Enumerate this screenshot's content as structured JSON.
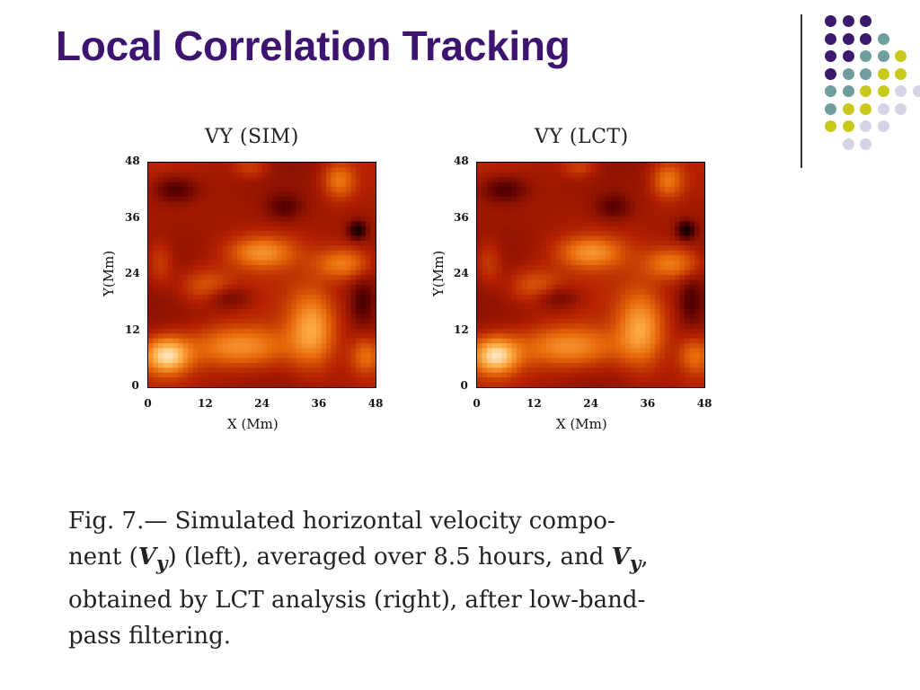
{
  "slide": {
    "title": "Local Correlation Tracking"
  },
  "decoration": {
    "dot_colors": {
      "purple": "#3b1a6e",
      "teal": "#6e9e9e",
      "yellow": "#c9c91c",
      "lavender": "#d4d4e6"
    },
    "dot_rows": [
      [
        "purple",
        "purple",
        "purple"
      ],
      [
        "purple",
        "purple",
        "purple",
        "teal"
      ],
      [
        "purple",
        "purple",
        "teal",
        "teal",
        "yellow"
      ],
      [
        "purple",
        "teal",
        "teal",
        "yellow",
        "yellow"
      ],
      [
        "teal",
        "teal",
        "yellow",
        "yellow",
        "lavender",
        "lavender"
      ],
      [
        "teal",
        "yellow",
        "yellow",
        "lavender",
        "lavender"
      ],
      [
        "yellow",
        "yellow",
        "lavender",
        "lavender"
      ],
      [
        "lavender",
        "lavender"
      ]
    ]
  },
  "chart_data": [
    {
      "type": "heatmap",
      "title": "VY (SIM)",
      "xlabel": "X (Mm)",
      "ylabel": "Y(Mm)",
      "xticks": [
        "0",
        "12",
        "24",
        "36",
        "48"
      ],
      "yticks": [
        "0",
        "12",
        "24",
        "36",
        "48"
      ],
      "xlim": [
        0,
        48
      ],
      "ylim": [
        0,
        48
      ],
      "colormap": [
        "#000000",
        "#5a0000",
        "#b32000",
        "#e86a0a",
        "#ffb04a",
        "#fff2d8"
      ]
    },
    {
      "type": "heatmap",
      "title": "VY (LCT)",
      "xlabel": "X (Mm)",
      "ylabel": "Y(Mm)",
      "xticks": [
        "0",
        "12",
        "24",
        "36",
        "48"
      ],
      "yticks": [
        "0",
        "12",
        "24",
        "36",
        "48"
      ],
      "xlim": [
        0,
        48
      ],
      "ylim": [
        0,
        48
      ],
      "colormap": [
        "#000000",
        "#5a0000",
        "#b32000",
        "#e86a0a",
        "#ffb04a",
        "#fff2d8"
      ]
    }
  ],
  "caption": {
    "line1": "Fig.   7.— Simulated horizontal velocity compo-",
    "line2a": "nent (",
    "line2_sym": "V",
    "line2_sub": "y",
    "line2b": ") (left), averaged over 8.5 hours, and ",
    "line2_sym2": "V",
    "line2_sub2": "y",
    "line2c": ",",
    "line3": "obtained by LCT analysis (right), after low-band-",
    "line4": "pass filtering."
  }
}
